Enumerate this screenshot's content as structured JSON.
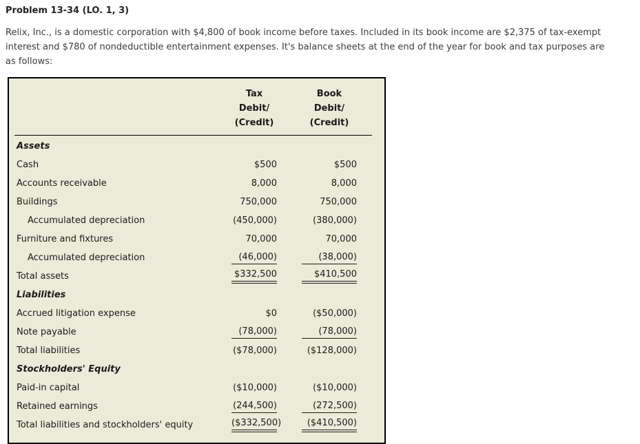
{
  "page": {
    "title": "Problem 13-34 (LO. 1, 3)",
    "intro_lines": [
      "Relix, Inc., is a domestic corporation with $4,800 of book income before taxes. Included in its book income are $2,375 of tax-exempt",
      "interest and $780 of nondeductible entertainment expenses. It's balance sheets at the end of the year for book and tax purposes are",
      "as follows:"
    ]
  },
  "colors": {
    "table_background": "#ecebd9",
    "table_border": "#000000",
    "text": "#1a1a1a"
  },
  "balance_sheet": {
    "header": {
      "tax": [
        "Tax",
        "Debit/",
        "(Credit)"
      ],
      "book": [
        "Book",
        "Debit/",
        "(Credit)"
      ]
    },
    "rows": [
      {
        "style": "section",
        "label": "Assets",
        "tax": "",
        "book": ""
      },
      {
        "style": "item",
        "label": "Cash",
        "tax": "$500",
        "book": "$500"
      },
      {
        "style": "item",
        "label": "Accounts receivable",
        "tax": "8,000",
        "book": "8,000"
      },
      {
        "style": "item",
        "label": "Buildings",
        "tax": "750,000",
        "book": "750,000"
      },
      {
        "style": "item-indent",
        "label": "Accumulated depreciation",
        "tax": "(450,000)",
        "book": "(380,000)"
      },
      {
        "style": "item",
        "label": "Furniture and fixtures",
        "tax": "70,000",
        "book": "70,000"
      },
      {
        "style": "item-indent underline-single",
        "label": "Accumulated depreciation",
        "tax": "(46,000)",
        "book": "(38,000)"
      },
      {
        "style": "total underline-double",
        "label": "Total assets",
        "tax": "$332,500",
        "book": "$410,500"
      },
      {
        "style": "section",
        "label": "Liabilities",
        "tax": "",
        "book": ""
      },
      {
        "style": "item",
        "label": "Accrued litigation expense",
        "tax": "$0",
        "book": "($50,000)"
      },
      {
        "style": "item underline-single",
        "label": "Note payable",
        "tax": "(78,000)",
        "book": "(78,000)"
      },
      {
        "style": "total",
        "label": "Total liabilities",
        "tax": "($78,000)",
        "book": "($128,000)"
      },
      {
        "style": "section",
        "label": "Stockholders' Equity",
        "tax": "",
        "book": ""
      },
      {
        "style": "item",
        "label": "Paid-in capital",
        "tax": "($10,000)",
        "book": "($10,000)"
      },
      {
        "style": "item underline-single",
        "label": "Retained earnings",
        "tax": "(244,500)",
        "book": "(272,500)"
      },
      {
        "style": "total underline-double",
        "label": "Total liabilities and stockholders' equity",
        "tax": "($332,500)",
        "book": "($410,500)"
      }
    ]
  }
}
